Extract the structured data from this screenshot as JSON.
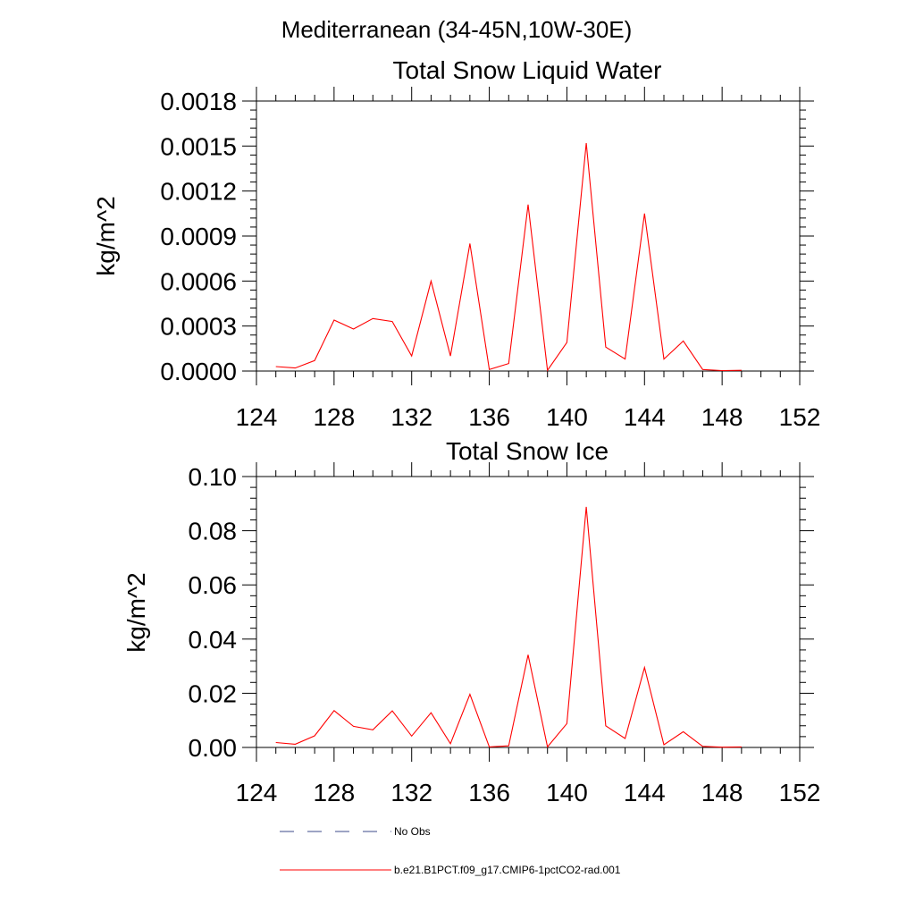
{
  "figure": {
    "suptitle": "Mediterranean (34-45N,10W-30E)"
  },
  "colors": {
    "series": "#ff0000",
    "axis": "#000000",
    "obs": "#3b4a8a"
  },
  "legend": {
    "placement": "bottom-center",
    "items": [
      {
        "label": "No Obs",
        "style": "dashed"
      },
      {
        "label": "b.e21.B1PCT.f09_g17.CMIP6-1pctCO2-rad.001",
        "style": "solid"
      }
    ]
  },
  "chart_data": [
    {
      "type": "line",
      "title": "Total Snow Liquid Water",
      "xlabel": "",
      "ylabel": "kg/m^2",
      "xlim": [
        124,
        152
      ],
      "ylim": [
        0,
        0.0018
      ],
      "xticks": [
        124,
        128,
        132,
        136,
        140,
        144,
        148,
        152
      ],
      "xtick_labels": [
        "124",
        "128",
        "132",
        "136",
        "140",
        "144",
        "148",
        "152"
      ],
      "yticks": [
        0,
        0.0003,
        0.0006,
        0.0009,
        0.0012,
        0.0015,
        0.0018
      ],
      "ytick_labels": [
        "0.0000",
        "0.0003",
        "0.0006",
        "0.0009",
        "0.0012",
        "0.0015",
        "0.0018"
      ],
      "grid": false,
      "series": [
        {
          "x": [
            125,
            126,
            127,
            128,
            129,
            130,
            131,
            132,
            133,
            134,
            135,
            136,
            137,
            138,
            139,
            140,
            141,
            142,
            143,
            144,
            145,
            146,
            147,
            148,
            149
          ],
          "y": [
            3e-05,
            2e-05,
            7e-05,
            0.00034,
            0.00028,
            0.00035,
            0.00033,
            0.0001,
            0.0006,
            0.0001,
            0.00085,
            1e-05,
            5e-05,
            0.00111,
            5e-06,
            0.00019,
            0.00152,
            0.00016,
            8e-05,
            0.00105,
            8e-05,
            0.0002,
            1e-05,
            3e-06,
            5e-06
          ]
        }
      ]
    },
    {
      "type": "line",
      "title": "Total Snow Ice",
      "xlabel": "",
      "ylabel": "kg/m^2",
      "xlim": [
        124,
        152
      ],
      "ylim": [
        0,
        0.1
      ],
      "xticks": [
        124,
        128,
        132,
        136,
        140,
        144,
        148,
        152
      ],
      "xtick_labels": [
        "124",
        "128",
        "132",
        "136",
        "140",
        "144",
        "148",
        "152"
      ],
      "yticks": [
        0,
        0.02,
        0.04,
        0.06,
        0.08,
        0.1
      ],
      "ytick_labels": [
        "0.00",
        "0.02",
        "0.04",
        "0.06",
        "0.08",
        "0.10"
      ],
      "grid": false,
      "series": [
        {
          "x": [
            125,
            126,
            127,
            128,
            129,
            130,
            131,
            132,
            133,
            134,
            135,
            136,
            137,
            138,
            139,
            140,
            141,
            142,
            143,
            144,
            145,
            146,
            147,
            148,
            149
          ],
          "y": [
            0.0018,
            0.0012,
            0.0043,
            0.0136,
            0.0078,
            0.0065,
            0.0135,
            0.0042,
            0.0128,
            0.0014,
            0.0196,
            0.0002,
            0.0006,
            0.0342,
            0.0002,
            0.0088,
            0.0888,
            0.008,
            0.0033,
            0.0295,
            0.001,
            0.0058,
            0.0004,
            0.0001,
            0.0002
          ]
        }
      ]
    }
  ]
}
